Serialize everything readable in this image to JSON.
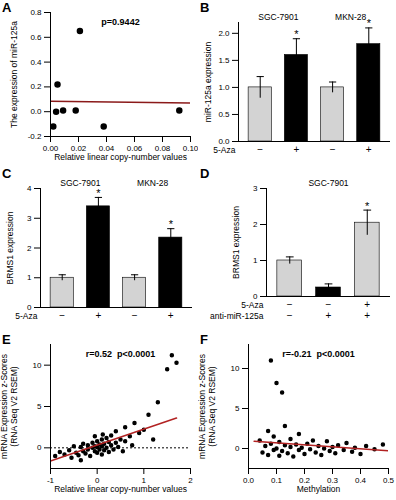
{
  "chart_data": [
    {
      "panel_label": "A",
      "type": "scatter",
      "annotation": "p=0.9442",
      "xlabel": "Relative linear copy-number values",
      "ylabel": "The expression of miR-125a",
      "x": [
        0.002,
        0.004,
        0.005,
        0.009,
        0.018,
        0.021,
        0.038,
        0.092
      ],
      "values": [
        -0.12,
        0.0,
        0.22,
        0.01,
        0.01,
        0.65,
        -0.12,
        0.01
      ],
      "color": "#000000",
      "marker": "circle",
      "trend_line": {
        "x": [
          0,
          0.1
        ],
        "y": [
          0.085,
          0.07
        ],
        "color": "#8b1a1a"
      },
      "xlim": [
        0,
        0.1
      ],
      "xticks": [
        {
          "value": 0,
          "label": "0.00"
        },
        {
          "value": 0.02,
          "label": "0.02"
        },
        {
          "value": 0.04,
          "label": "0.04"
        },
        {
          "value": 0.06,
          "label": "0.06"
        },
        {
          "value": 0.08,
          "label": "0.08"
        },
        {
          "value": 0.1,
          "label": "0.10"
        }
      ],
      "ylim": [
        -0.2,
        0.8
      ],
      "yticks": [
        {
          "value": -0.2,
          "label": "-0.2"
        },
        {
          "value": 0,
          "label": "0.0"
        },
        {
          "value": 0.2,
          "label": "0.2"
        },
        {
          "value": 0.4,
          "label": "0.4"
        },
        {
          "value": 0.6,
          "label": "0.6"
        },
        {
          "value": 0.8,
          "label": "0.8"
        }
      ]
    },
    {
      "panel_label": "B",
      "type": "bar",
      "ylabel": "miR-125a expression",
      "group_of": [
        "SGC-7901",
        "SGC-7901",
        "MKN-28",
        "MKN-28"
      ],
      "condition_rows": [
        {
          "name": "5-Aza",
          "marks": [
            "−",
            "+",
            "−",
            "+"
          ]
        }
      ],
      "values": [
        1.0,
        1.6,
        1.0,
        1.8
      ],
      "errors": [
        0.2,
        0.3,
        0.1,
        0.3
      ],
      "colors": [
        "#d3d3d3",
        "#000000",
        "#d3d3d3",
        "#000000"
      ],
      "significance": [
        null,
        "*",
        null,
        "*"
      ],
      "ylim": [
        0,
        2.2
      ],
      "yticks": [
        {
          "value": 0,
          "label": "0.0"
        },
        {
          "value": 0.5,
          "label": "0.5"
        },
        {
          "value": 1,
          "label": "1.0"
        },
        {
          "value": 1.5,
          "label": "1.5"
        },
        {
          "value": 2,
          "label": "2.0"
        }
      ]
    },
    {
      "panel_label": "C",
      "type": "bar",
      "ylabel": "BRMS1 expression",
      "group_of": [
        "SGC-7901",
        "SGC-7901",
        "MKN-28",
        "MKN-28"
      ],
      "condition_rows": [
        {
          "name": "5-Aza",
          "marks": [
            "−",
            "+",
            "−",
            "+"
          ]
        }
      ],
      "values": [
        1.0,
        3.4,
        1.0,
        2.35
      ],
      "errors": [
        0.1,
        0.3,
        0.1,
        0.3
      ],
      "colors": [
        "#d3d3d3",
        "#000000",
        "#d3d3d3",
        "#000000"
      ],
      "significance": [
        null,
        "*",
        null,
        "*"
      ],
      "ylim": [
        0,
        4
      ],
      "yticks": [
        0,
        1,
        2,
        3,
        4
      ]
    },
    {
      "panel_label": "D",
      "type": "bar",
      "ylabel": "BRMS1 expression",
      "group_of": [
        "SGC-7901",
        "SGC-7901",
        "SGC-7901"
      ],
      "condition_rows": [
        {
          "name": "5-Aza",
          "marks": [
            "−",
            "−",
            "+"
          ]
        },
        {
          "name": "anti-miR-125a",
          "marks": [
            "−",
            "+",
            "+"
          ]
        }
      ],
      "values": [
        1.0,
        0.25,
        2.05
      ],
      "errors": [
        0.1,
        0.1,
        0.35
      ],
      "colors": [
        "#d3d3d3",
        "#000000",
        "#d3d3d3"
      ],
      "significance": [
        null,
        null,
        "*"
      ],
      "ylim": [
        0,
        3
      ],
      "yticks": [
        0,
        1,
        2,
        3
      ]
    },
    {
      "panel_label": "E",
      "type": "scatter",
      "annotation": "r=0.52  p<0.0001",
      "xlabel": "Relative linear copy-number values",
      "ylabel": [
        "mRNA Expression z-Scores",
        "(RNA Seq V2 RSEM)"
      ],
      "x": [
        -0.9,
        -0.8,
        -0.7,
        -0.6,
        -0.55,
        -0.5,
        -0.45,
        -0.4,
        -0.35,
        -0.3,
        -0.3,
        -0.25,
        -0.2,
        -0.2,
        -0.15,
        -0.1,
        -0.1,
        -0.05,
        -0.05,
        0,
        0,
        0,
        0.05,
        0.05,
        0.1,
        0.1,
        0.1,
        0.15,
        0.15,
        0.2,
        0.2,
        0.25,
        0.25,
        0.3,
        0.3,
        0.35,
        0.4,
        0.4,
        0.45,
        0.5,
        0.55,
        0.6,
        0.6,
        0.7,
        0.75,
        0.8,
        0.9,
        1.0,
        1.1,
        1.2,
        1.3,
        1.5,
        1.6,
        1.7,
        -0.05,
        0.12,
        -0.35
      ],
      "values": [
        -1.0,
        -0.5,
        -0.8,
        -0.3,
        -1.2,
        0.2,
        -0.6,
        -0.9,
        0.1,
        -0.4,
        0.5,
        -0.7,
        -0.2,
        0.3,
        -1.0,
        0.0,
        0.6,
        -0.4,
        0.2,
        -0.6,
        0.1,
        0.8,
        -0.2,
        0.4,
        -0.8,
        0.2,
        1.0,
        -0.3,
        0.5,
        0.0,
        1.2,
        -0.5,
        0.7,
        0.3,
        1.5,
        -0.2,
        0.6,
        2.0,
        0.1,
        1.0,
        -0.4,
        0.8,
        2.5,
        1.4,
        0.3,
        3.0,
        1.8,
        2.2,
        4.0,
        1.0,
        5.5,
        9.5,
        11.2,
        10.3,
        1.4,
        1.6,
        -1.5
      ],
      "color": "#000000",
      "marker": "circle",
      "trend_line": {
        "x": [
          -1,
          1.7
        ],
        "y": [
          -1.6,
          3.6
        ],
        "color": "#b22222"
      },
      "reference_line": {
        "y": 0,
        "line_style": "dotted"
      },
      "xlim": [
        -1,
        2
      ],
      "xticks": [
        -1,
        0,
        1,
        2
      ],
      "ylim": [
        -2.5,
        12.5
      ],
      "yticks": [
        0,
        5,
        10
      ]
    },
    {
      "panel_label": "F",
      "type": "scatter",
      "annotation": "r=-0.21  p<0.0001",
      "xlabel": "Methylation",
      "ylabel": [
        "mRNA Expression z-Scores",
        "(RNA Seq V2 RSEM)"
      ],
      "x": [
        0.04,
        0.05,
        0.06,
        0.07,
        0.07,
        0.08,
        0.08,
        0.09,
        0.09,
        0.1,
        0.1,
        0.11,
        0.11,
        0.12,
        0.12,
        0.13,
        0.13,
        0.14,
        0.15,
        0.15,
        0.16,
        0.17,
        0.18,
        0.18,
        0.19,
        0.2,
        0.21,
        0.22,
        0.23,
        0.24,
        0.25,
        0.26,
        0.27,
        0.28,
        0.29,
        0.3,
        0.31,
        0.32,
        0.34,
        0.35,
        0.37,
        0.38,
        0.4,
        0.42,
        0.45,
        0.48
      ],
      "values": [
        1.0,
        -0.5,
        0.3,
        2.2,
        -0.8,
        11.0,
        0.6,
        -0.2,
        1.5,
        8.2,
        0.0,
        -0.9,
        0.8,
        7.0,
        -0.3,
        0.4,
        2.8,
        -0.6,
        0.2,
        1.2,
        -1.0,
        0.5,
        -0.2,
        1.8,
        0.1,
        -0.7,
        0.6,
        -0.1,
        1.0,
        -0.5,
        0.3,
        -0.8,
        0.0,
        0.9,
        -0.3,
        0.2,
        -0.6,
        0.4,
        -0.2,
        0.7,
        -0.4,
        0.1,
        -0.7,
        0.3,
        -0.1,
        0.5
      ],
      "color": "#000000",
      "marker": "circle",
      "trend_line": {
        "x": [
          0.02,
          0.5
        ],
        "y": [
          0.9,
          -0.3
        ],
        "color": "#b22222"
      },
      "xlim": [
        0,
        0.5
      ],
      "xticks": [
        {
          "value": 0,
          "label": "0.0"
        },
        {
          "value": 0.1,
          "label": "0.1"
        },
        {
          "value": 0.2,
          "label": "0.2"
        },
        {
          "value": 0.3,
          "label": "0.3"
        },
        {
          "value": 0.4,
          "label": "0.4"
        },
        {
          "value": 0.5,
          "label": "0.5"
        }
      ],
      "ylim": [
        -2.5,
        13
      ],
      "yticks": [
        0,
        5,
        10
      ]
    }
  ]
}
